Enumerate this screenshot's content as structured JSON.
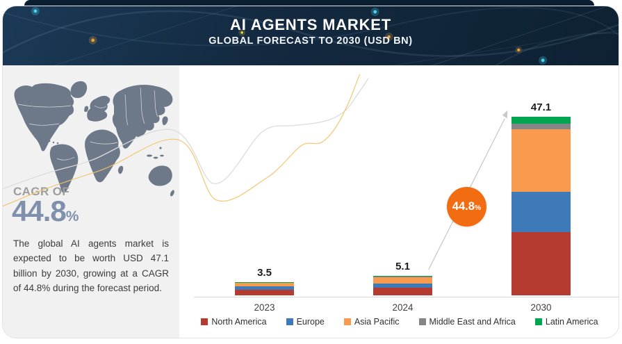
{
  "header": {
    "title": "AI AGENTS MARKET",
    "subtitle": "GLOBAL FORECAST TO 2030 (USD BN)"
  },
  "sidebar": {
    "cagr_label": "CAGR OF",
    "cagr_value": "44.8",
    "cagr_percent_sign": "%",
    "description": "The global AI agents market is expected to be worth USD 47.1 billion by 2030, growing at a CAGR of 44.8% during the forecast period."
  },
  "growth_badge": {
    "value": "44.8",
    "percent_sign": "%",
    "color": "#f26c12"
  },
  "chart_data": {
    "type": "bar",
    "stacked": true,
    "title": "AI AGENTS MARKET",
    "subtitle": "GLOBAL FORECAST TO 2030 (USD BN)",
    "unit": "USD BN",
    "categories": [
      "2023",
      "2024",
      "2030"
    ],
    "totals": [
      3.5,
      5.1,
      47.1
    ],
    "total_labels": [
      "3.5",
      "5.1",
      "47.1"
    ],
    "series": [
      {
        "name": "North America",
        "color": "#b53b30",
        "values": [
          1.4,
          2.0,
          16.6
        ]
      },
      {
        "name": "Europe",
        "color": "#3e79b8",
        "values": [
          0.9,
          1.2,
          10.7
        ]
      },
      {
        "name": "Asia Pacific",
        "color": "#f89b4e",
        "values": [
          1.0,
          1.6,
          16.6
        ]
      },
      {
        "name": "Middle East and Africa",
        "color": "#858585",
        "values": [
          0.05,
          0.1,
          1.3
        ]
      },
      {
        "name": "Latin America",
        "color": "#00a54f",
        "values": [
          0.15,
          0.2,
          1.9
        ]
      }
    ],
    "ylim": [
      0,
      50
    ],
    "grid": false,
    "legend_position": "bottom",
    "annotations": [
      {
        "text": "44.8%",
        "kind": "growth-arrow",
        "from": "2024",
        "to": "2030"
      }
    ]
  },
  "colors": {
    "header_bg": "#13293f",
    "panel_bg": "#f1f1f2",
    "map_fill": "#6d7888",
    "cagr_value_color": "#7e90ab",
    "axis_line": "#d8d8d8",
    "wave_gray": "#dcdcdc",
    "wave_yellow": "#f2c46a"
  }
}
